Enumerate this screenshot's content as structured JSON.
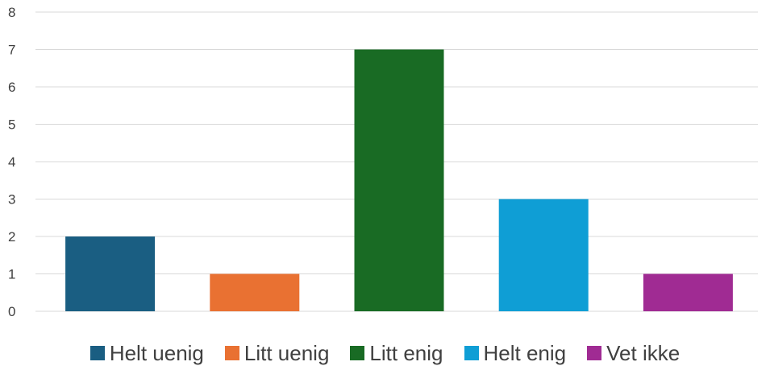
{
  "chart_data": {
    "type": "bar",
    "categories": [
      "Helt uenig",
      "Litt uenig",
      "Litt enig",
      "Helt enig",
      "Vet ikke"
    ],
    "values": [
      2,
      1,
      7,
      3,
      1
    ],
    "colors": [
      "#1a5e82",
      "#e97132",
      "#196b24",
      "#0f9ed5",
      "#a02b93"
    ],
    "title": "",
    "xlabel": "",
    "ylabel": "",
    "ylim": [
      0,
      8
    ],
    "yticks": [
      "0",
      "1",
      "2",
      "3",
      "4",
      "5",
      "6",
      "7",
      "8"
    ],
    "grid": true,
    "legend": "bottom"
  }
}
